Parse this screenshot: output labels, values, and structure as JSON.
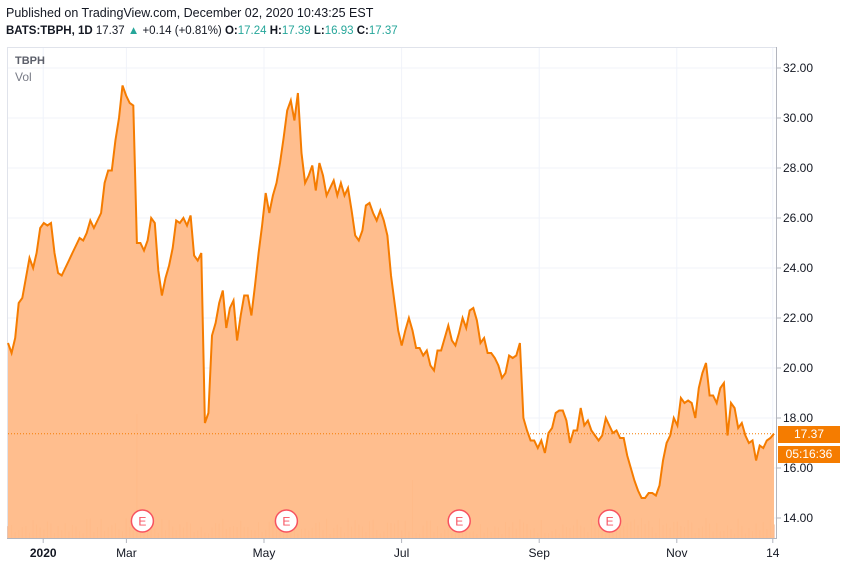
{
  "header": {
    "published": "Published on TradingView.com, December 02, 2020 10:43:25 EST",
    "symbol": "BATS:TBPH, 1D",
    "last": "17.37",
    "change_arrow": "▲",
    "change": "+0.14 (+0.81%)",
    "o_label": "O:",
    "o_value": "17.24",
    "h_label": "H:",
    "h_value": "17.39",
    "l_label": "L:",
    "l_value": "16.93",
    "c_label": "C:",
    "c_value": "17.37"
  },
  "overlay": {
    "name": "TBPH",
    "vol_label": "Vol"
  },
  "tags": {
    "price": "17.37",
    "time": "05:16:36"
  },
  "colors": {
    "line": "#f57c00",
    "fill": "#ffbb88",
    "up": "#26a69a"
  },
  "chart_data": {
    "type": "area",
    "title": "",
    "xlabel": "",
    "ylabel": "",
    "ylim": [
      13.2,
      32.8
    ],
    "y_ticks": [
      "14.00",
      "16.00",
      "18.00",
      "20.00",
      "22.00",
      "24.00",
      "26.00",
      "28.00",
      "30.00",
      "32.00"
    ],
    "x_ticks": [
      {
        "label": "2020",
        "pos": 11
      },
      {
        "label": "Mar",
        "pos": 37
      },
      {
        "label": "May",
        "pos": 80
      },
      {
        "label": "Jul",
        "pos": 123
      },
      {
        "label": "Sep",
        "pos": 166
      },
      {
        "label": "Nov",
        "pos": 209
      },
      {
        "label": "14",
        "pos": 239
      }
    ],
    "x_range": [
      0,
      240
    ],
    "earnings_markers": [
      {
        "label": "E",
        "pos": 42
      },
      {
        "label": "E",
        "pos": 87
      },
      {
        "label": "E",
        "pos": 141
      },
      {
        "label": "E",
        "pos": 188
      }
    ],
    "last_price": 17.37,
    "series": [
      {
        "values": [
          21.0,
          20.6,
          21.2,
          22.6,
          22.8,
          23.6,
          24.4,
          24.0,
          24.6,
          25.6,
          25.8,
          25.7,
          25.8,
          24.6,
          23.8,
          23.7,
          24.0,
          24.3,
          24.6,
          24.9,
          25.2,
          25.1,
          25.4,
          25.9,
          25.6,
          25.9,
          26.2,
          27.4,
          27.9,
          27.9,
          29.1,
          30.0,
          31.3,
          30.9,
          30.6,
          30.5,
          25.0,
          25.0,
          24.7,
          25.1,
          26.0,
          25.8,
          23.9,
          22.9,
          23.6,
          24.1,
          24.8,
          25.9,
          25.8,
          26.0,
          25.7,
          26.1,
          24.5,
          24.3,
          24.6,
          17.8,
          18.2,
          21.3,
          21.8,
          22.6,
          23.1,
          21.6,
          22.4,
          22.7,
          21.1,
          22.1,
          22.9,
          22.9,
          22.1,
          23.3,
          24.6,
          25.7,
          27.0,
          26.2,
          26.9,
          27.4,
          28.2,
          29.2,
          30.3,
          30.7,
          29.9,
          31.0,
          28.6,
          27.4,
          27.7,
          28.1,
          27.1,
          28.2,
          27.7,
          26.9,
          27.2,
          27.5,
          26.9,
          27.4,
          26.9,
          27.2,
          26.3,
          25.3,
          25.1,
          25.5,
          26.5,
          26.6,
          26.2,
          25.9,
          26.3,
          25.9,
          25.3,
          23.7,
          22.6,
          21.5,
          20.9,
          21.5,
          22.0,
          21.5,
          20.8,
          20.8,
          20.5,
          20.7,
          20.1,
          19.9,
          20.7,
          20.7,
          21.2,
          21.7,
          21.1,
          20.9,
          21.4,
          22.0,
          21.6,
          22.3,
          22.4,
          21.9,
          21.0,
          21.2,
          20.6,
          20.6,
          20.4,
          20.1,
          19.6,
          19.8,
          20.5,
          20.4,
          20.5,
          21.0,
          18.0,
          17.5,
          17.1,
          17.1,
          16.8,
          17.1,
          16.6,
          17.4,
          17.6,
          18.2,
          18.3,
          18.3,
          17.9,
          17.0,
          17.5,
          17.5,
          18.4,
          17.7,
          17.9,
          17.5,
          17.3,
          17.1,
          17.3,
          18.0,
          17.7,
          17.4,
          17.5,
          17.2,
          17.2,
          16.5,
          16.0,
          15.5,
          15.1,
          14.8,
          14.8,
          15.0,
          15.0,
          14.9,
          15.3,
          16.3,
          17.0,
          17.3,
          18.0,
          17.7,
          18.8,
          18.6,
          18.7,
          18.6,
          18.0,
          19.2,
          19.8,
          20.2,
          18.9,
          18.9,
          18.6,
          19.2,
          19.4,
          17.3,
          18.6,
          18.4,
          17.6,
          17.8,
          17.3,
          17.0,
          17.1,
          16.3,
          16.9,
          16.8,
          17.1,
          17.2,
          17.37
        ]
      }
    ]
  }
}
